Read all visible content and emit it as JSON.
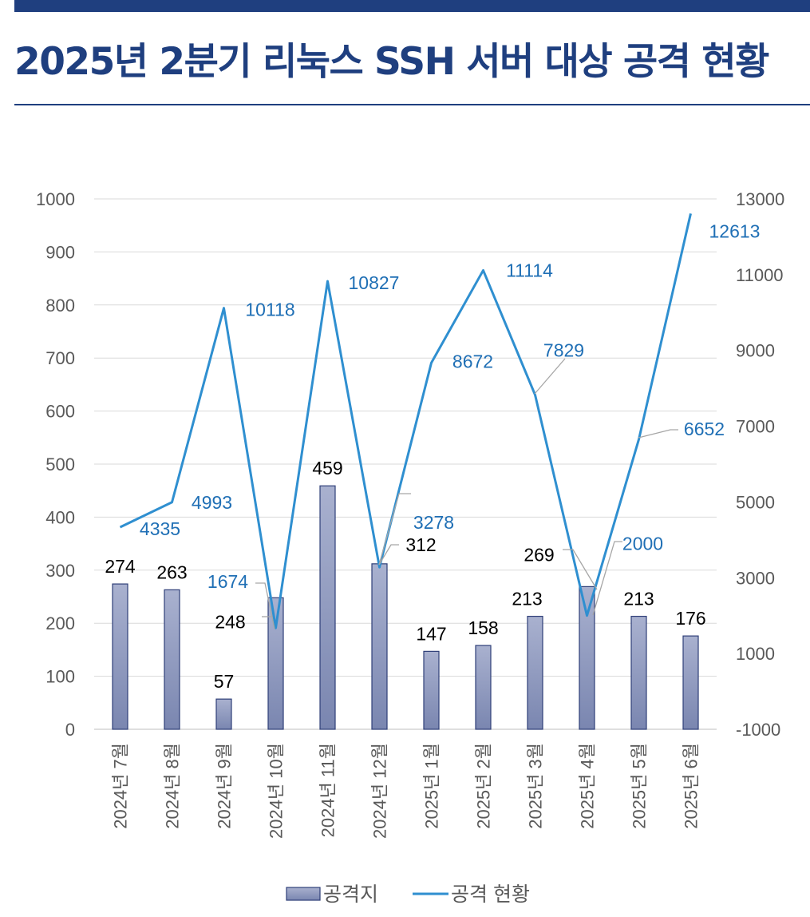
{
  "title": "2025년 2분기 리눅스 SSH 서버 대상 공격 현황",
  "chart_data": {
    "type": "bar",
    "categories": [
      "2024년 7월",
      "2024년 8월",
      "2024년 9월",
      "2024년 10월",
      "2024년 11월",
      "2024년 12월",
      "2025년 1월",
      "2025년 2월",
      "2025년 3월",
      "2025년 4월",
      "2025년 5월",
      "2025년 6월"
    ],
    "series": [
      {
        "name": "공격지",
        "type": "bar",
        "axis": "left",
        "color": "#8f9ac0",
        "values": [
          274,
          263,
          57,
          248,
          459,
          312,
          147,
          158,
          213,
          269,
          213,
          176
        ]
      },
      {
        "name": "공격 현황",
        "type": "line",
        "axis": "right",
        "color": "#2f8fd0",
        "values": [
          4335,
          4993,
          10118,
          1674,
          10827,
          3278,
          8672,
          11114,
          7829,
          2000,
          6652,
          12613
        ]
      }
    ],
    "y_left": {
      "min": 0,
      "max": 1000,
      "ticks": [
        "0",
        "100",
        "200",
        "300",
        "400",
        "500",
        "600",
        "700",
        "800",
        "900",
        "1000"
      ]
    },
    "y_right": {
      "min": -1000,
      "max": 13000,
      "ticks": [
        "-1000",
        "1000",
        "3000",
        "5000",
        "7000",
        "9000",
        "11000",
        "13000"
      ]
    },
    "grid": true,
    "legend_position": "bottom"
  }
}
